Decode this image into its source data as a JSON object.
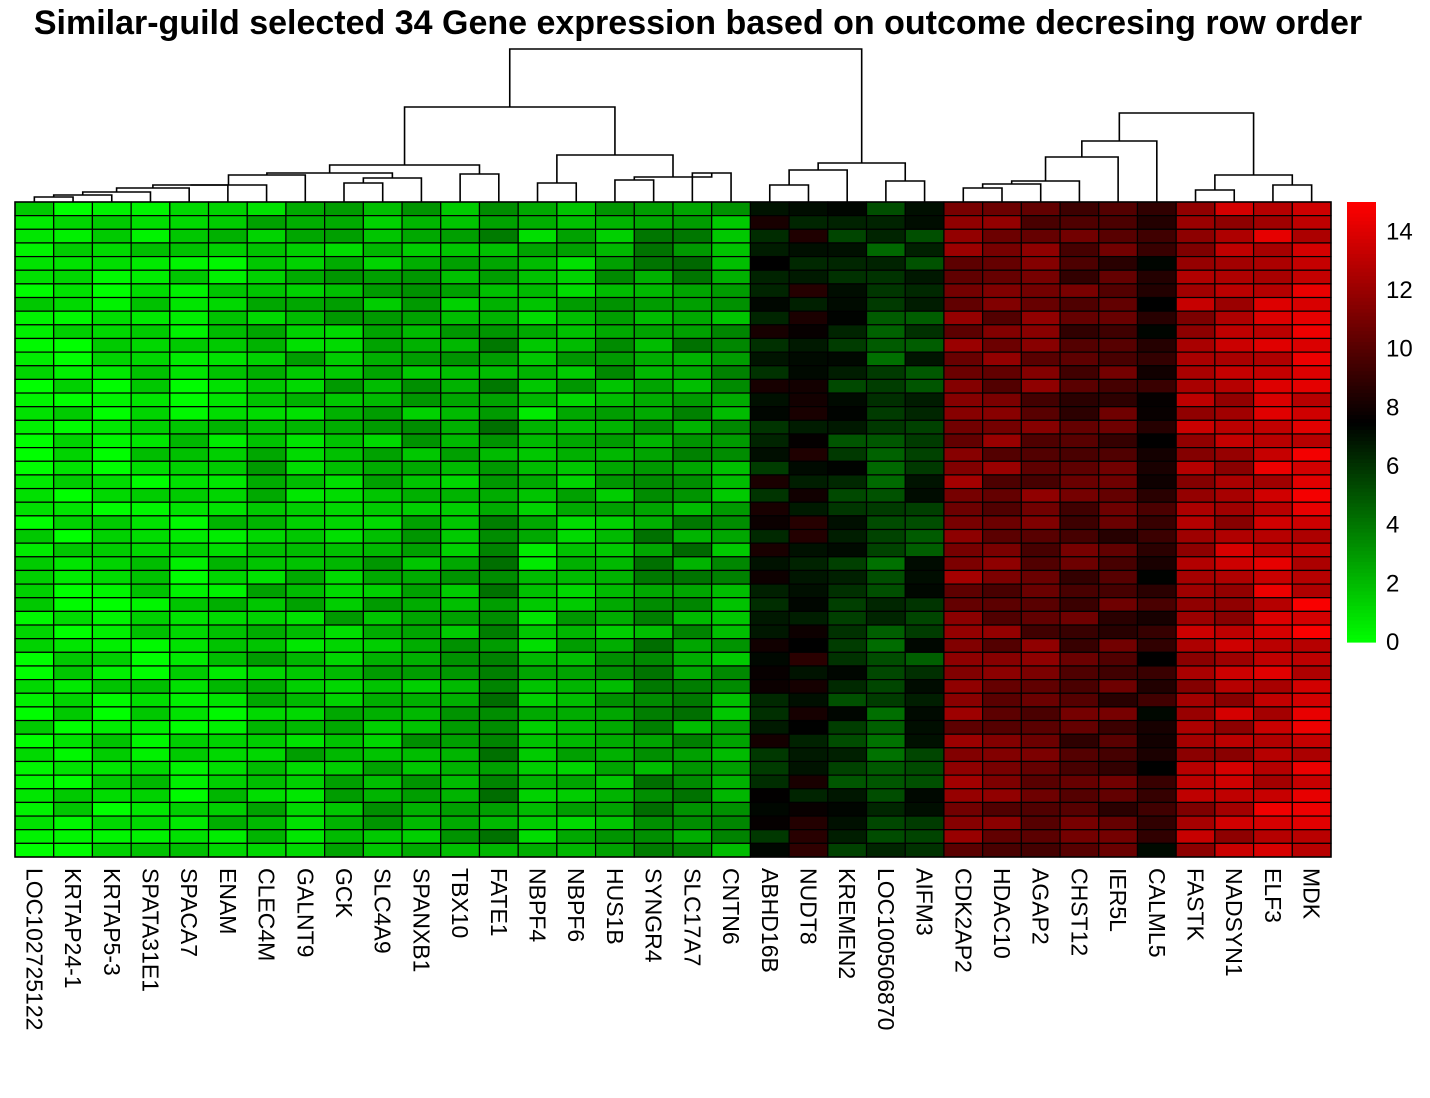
{
  "chart_data": {
    "type": "heatmap",
    "title": "Similar-guild selected 34 Gene expression based on outcome decresing row order",
    "xlabel": "",
    "ylabel": "",
    "columns": [
      "LOC102725122",
      "KRTAP24-1",
      "KRTAP5-3",
      "SPATA31E1",
      "SPACA7",
      "ENAM",
      "CLEC4M",
      "GALNT9",
      "GCK",
      "SLC4A9",
      "SPANXB1",
      "TBX10",
      "FATE1",
      "NBPF4",
      "NBPF6",
      "HUS1B",
      "SYNGR4",
      "SLC17A7",
      "CNTN6",
      "ABHD16B",
      "NUDT8",
      "KREMEN2",
      "LOC100506870",
      "AIFM3",
      "CDK2AP2",
      "HDAC10",
      "AGAP2",
      "CHST12",
      "IER5L",
      "CALML5",
      "FASTK",
      "NADSYN1",
      "ELF3",
      "MDK"
    ],
    "column_mean_expression": [
      0.6,
      0.6,
      0.7,
      1.0,
      1.1,
      1.3,
      1.9,
      1.8,
      2.0,
      2.2,
      2.3,
      2.2,
      3.0,
      1.6,
      2.0,
      2.4,
      3.0,
      3.2,
      2.6,
      7.0,
      7.6,
      6.2,
      5.4,
      6.0,
      11.3,
      10.8,
      10.6,
      9.9,
      9.8,
      8.5,
      12.3,
      12.6,
      13.4,
      13.7
    ],
    "row_count": 48,
    "value_range": [
      0,
      15
    ],
    "colorbar": {
      "ticks": [
        0,
        2,
        4,
        6,
        8,
        10,
        12,
        14
      ],
      "colors": [
        "#00ff00",
        "#000000",
        "#ff0000"
      ],
      "midpoint": 7.5,
      "position": "right"
    },
    "column_dendrogram": true,
    "row_order": "decreasing outcome",
    "grid": true
  }
}
